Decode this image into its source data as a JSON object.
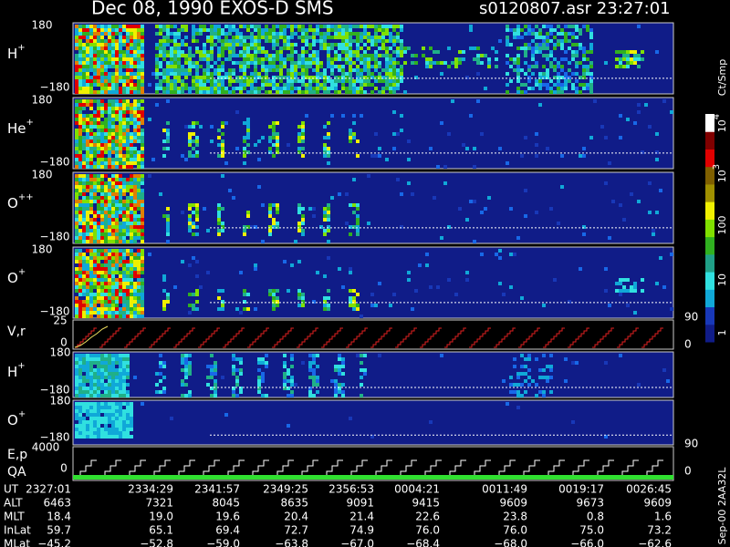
{
  "header": {
    "title": "Dec 08, 1990    EXOS-D SMS",
    "file": "s0120807.asr  23:27:01"
  },
  "panels": [
    {
      "label": "H",
      "sup": "+",
      "ymax": "180",
      "ymin": "−180"
    },
    {
      "label": "He",
      "sup": "+",
      "ymax": "180",
      "ymin": "−180"
    },
    {
      "label": "O",
      "sup": "++",
      "ymax": "180",
      "ymin": "−180"
    },
    {
      "label": "O",
      "sup": "+",
      "ymax": "180",
      "ymin": "−180"
    }
  ],
  "vr": {
    "label": "V,r",
    "top": "25",
    "bottom": "0",
    "right_top": "90",
    "right_bottom": "0"
  },
  "lower_panels": [
    {
      "label": "H",
      "sup": "+",
      "ymax": "180",
      "ymin": "−180"
    },
    {
      "label": "O",
      "sup": "+",
      "ymax": "180",
      "ymin": "−180"
    }
  ],
  "ep": {
    "label1": "E,p",
    "label2": "QA",
    "top": "4000",
    "bottom": "0",
    "right_top": "90",
    "right_bottom": "0"
  },
  "colorbar": {
    "unit": "Ct/Smp",
    "labels": [
      {
        "base": "10",
        "sup": "4"
      },
      {
        "base": "10",
        "sup": "3"
      },
      {
        "base": "100"
      },
      {
        "base": "10"
      },
      {
        "base": "1"
      }
    ]
  },
  "table": {
    "rows": [
      {
        "name": "UT",
        "values": [
          "2327:01",
          "2334:29",
          "2341:57",
          "2349:25",
          "2356:53",
          "0004:21",
          "0011:49",
          "0019:17",
          "0026:45"
        ]
      },
      {
        "name": "ALT",
        "values": [
          "6463",
          "7321",
          "8045",
          "8635",
          "9091",
          "9415",
          "9609",
          "9673",
          "9609"
        ]
      },
      {
        "name": "MLT",
        "values": [
          "18.4",
          "19.0",
          "19.6",
          "20.4",
          "21.4",
          "22.6",
          "23.8",
          "0.8",
          "1.6"
        ]
      },
      {
        "name": "InLat",
        "values": [
          "59.7",
          "65.1",
          "69.4",
          "72.7",
          "74.9",
          "76.0",
          "76.0",
          "75.0",
          "73.2"
        ]
      },
      {
        "name": "MLat",
        "values": [
          "−45.2",
          "−52.8",
          "−59.0",
          "−63.8",
          "−67.0",
          "−68.4",
          "−68.0",
          "−66.0",
          "−62.6"
        ]
      }
    ]
  },
  "footer": "Sep-00  2AA32L"
}
